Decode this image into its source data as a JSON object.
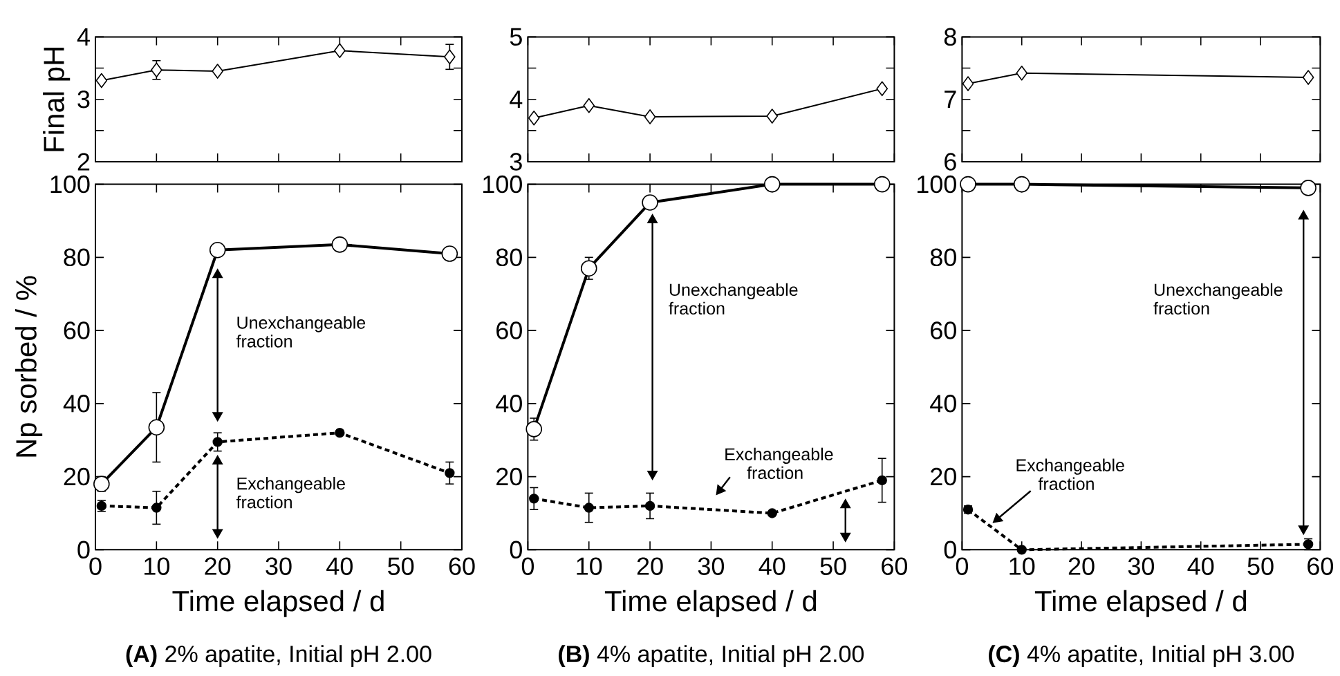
{
  "chart_data": [
    {
      "type": "line",
      "ylabel": "Final pH",
      "x": [
        1,
        10,
        20,
        40,
        58
      ],
      "xlim": [
        0,
        60
      ],
      "ylim": [
        2,
        4
      ],
      "xticks": [
        0,
        10,
        20,
        30,
        40,
        50,
        60
      ],
      "yticks": [
        2,
        {
          "value": 2.5,
          "label": null
        },
        3,
        {
          "value": 3.5,
          "label": null
        },
        4
      ],
      "tick_labels": "y",
      "grid": false,
      "series": [
        {
          "color": "#000000",
          "marker": "diamond",
          "line_style": "solid",
          "values": [
            3.3,
            3.47,
            3.45,
            3.78,
            3.68
          ],
          "errors": [
            null,
            0.15,
            null,
            null,
            0.2
          ]
        }
      ]
    },
    {
      "type": "line",
      "x": [
        1,
        10,
        20,
        40,
        58
      ],
      "xlim": [
        0,
        60
      ],
      "ylim": [
        3,
        5
      ],
      "xticks": [
        0,
        10,
        20,
        30,
        40,
        50,
        60
      ],
      "yticks": [
        3,
        {
          "value": 3.5,
          "label": null
        },
        4,
        {
          "value": 4.5,
          "label": null
        },
        5
      ],
      "tick_labels": "y",
      "grid": false,
      "series": [
        {
          "color": "#000000",
          "marker": "diamond",
          "line_style": "solid",
          "values": [
            3.7,
            3.9,
            3.72,
            3.73,
            4.17
          ]
        }
      ]
    },
    {
      "type": "line",
      "x": [
        1,
        10,
        58
      ],
      "xlim": [
        0,
        60
      ],
      "ylim": [
        6,
        8
      ],
      "xticks": [
        0,
        10,
        20,
        30,
        40,
        50,
        60
      ],
      "yticks": [
        6,
        {
          "value": 6.5,
          "label": null
        },
        7,
        {
          "value": 7.5,
          "label": null
        },
        8
      ],
      "tick_labels": "y",
      "grid": false,
      "series": [
        {
          "color": "#000000",
          "marker": "diamond",
          "line_style": "solid",
          "values": [
            7.25,
            7.42,
            7.35
          ]
        }
      ]
    },
    {
      "type": "line",
      "title": "**(A)** 2% apatite, Initial pH 2.00",
      "xlabel": "Time elapsed / d",
      "ylabel": "Np sorbed / %",
      "x": [
        1,
        10,
        20,
        40,
        58
      ],
      "xlim": [
        0,
        60
      ],
      "ylim": [
        0,
        100
      ],
      "xticks": [
        0,
        10,
        20,
        30,
        40,
        50,
        60
      ],
      "yticks": [
        0,
        20,
        40,
        60,
        80,
        100
      ],
      "grid": false,
      "annotations": [
        "Unexchangeable fraction",
        "Exchangeable fraction"
      ],
      "series": [
        {
          "color": "#000000",
          "marker": "circle",
          "line_style": "solid",
          "values": [
            18,
            33.5,
            82,
            83.5,
            81
          ],
          "errors": [
            2,
            9.5,
            null,
            null,
            null
          ]
        },
        {
          "color": "#000000",
          "marker": "circle",
          "line_style": "dashed",
          "values": [
            12,
            11.5,
            29.5,
            32,
            21
          ],
          "errors": [
            1.5,
            4.5,
            2.5,
            null,
            3
          ]
        }
      ]
    },
    {
      "type": "line",
      "title": "**(B)** 4% apatite, Initial pH 2.00",
      "xlabel": "Time elapsed / d",
      "x": [
        1,
        10,
        20,
        40,
        58
      ],
      "xlim": [
        0,
        60
      ],
      "ylim": [
        0,
        100
      ],
      "xticks": [
        0,
        10,
        20,
        30,
        40,
        50,
        60
      ],
      "yticks": [
        0,
        20,
        40,
        60,
        80,
        100
      ],
      "grid": false,
      "annotations": [
        "Unexchangeable fraction",
        "Exchangeable fraction"
      ],
      "series": [
        {
          "color": "#000000",
          "marker": "circle",
          "line_style": "solid",
          "values": [
            33,
            77,
            95,
            100,
            100
          ],
          "errors": [
            3,
            3,
            null,
            null,
            null
          ]
        },
        {
          "color": "#000000",
          "marker": "circle",
          "line_style": "dashed",
          "values": [
            14,
            11.5,
            12,
            10,
            19
          ],
          "errors": [
            3,
            4,
            3.5,
            null,
            6
          ]
        }
      ]
    },
    {
      "type": "line",
      "title": "**(C)** 4% apatite, Initial pH 3.00",
      "xlabel": "Time elapsed / d",
      "x": [
        1,
        10,
        58
      ],
      "xlim": [
        0,
        60
      ],
      "ylim": [
        0,
        100
      ],
      "xticks": [
        0,
        10,
        20,
        30,
        40,
        50,
        60
      ],
      "yticks": [
        0,
        20,
        40,
        60,
        80,
        100
      ],
      "grid": false,
      "annotations": [
        "Unexchangeable fraction",
        "Exchangeable fraction"
      ],
      "series": [
        {
          "color": "#000000",
          "marker": "circle",
          "line_style": "solid",
          "values": [
            100,
            100,
            99
          ]
        },
        {
          "color": "#000000",
          "marker": "circle",
          "line_style": "dashed",
          "values": [
            11,
            0,
            1.5
          ],
          "errors": [
            1,
            null,
            1.5
          ]
        }
      ]
    }
  ]
}
